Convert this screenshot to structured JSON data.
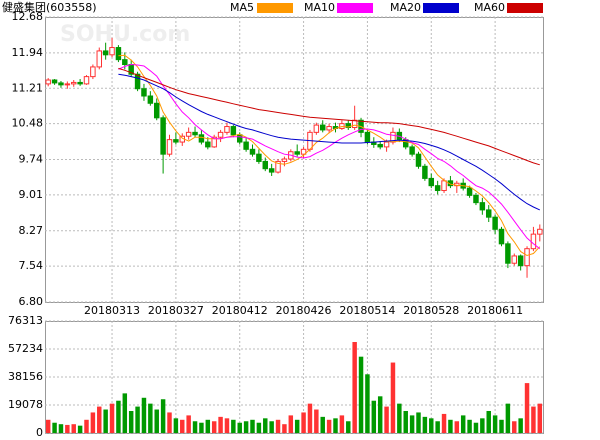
{
  "chart_data": {
    "type": "candlestick",
    "title": "健盛集团(603558)",
    "watermark": "SOHU.com",
    "categories": [
      null,
      null,
      null,
      null,
      null,
      null,
      null,
      null,
      null,
      null,
      "20180313",
      null,
      null,
      null,
      null,
      null,
      null,
      null,
      null,
      null,
      "20180327",
      null,
      null,
      null,
      null,
      null,
      null,
      null,
      null,
      null,
      "20180412",
      null,
      null,
      null,
      null,
      null,
      null,
      null,
      null,
      null,
      "20180426",
      null,
      null,
      null,
      null,
      null,
      null,
      null,
      null,
      null,
      "20180514",
      null,
      null,
      null,
      null,
      null,
      null,
      null,
      null,
      null,
      "20180528",
      null,
      null,
      null,
      null,
      null,
      null,
      null,
      null,
      null,
      "20180611",
      null,
      null,
      null,
      null,
      null,
      null,
      null
    ],
    "open": [
      11.3,
      11.38,
      11.32,
      11.28,
      11.3,
      11.33,
      11.3,
      11.45,
      11.65,
      11.98,
      11.9,
      12.05,
      11.8,
      11.7,
      11.5,
      11.2,
      11.05,
      10.9,
      10.6,
      9.85,
      10.15,
      10.1,
      10.22,
      10.3,
      10.25,
      10.1,
      10.0,
      10.2,
      10.3,
      10.42,
      10.25,
      10.1,
      9.95,
      9.85,
      9.7,
      9.55,
      9.48,
      9.7,
      9.75,
      9.9,
      9.85,
      9.95,
      10.3,
      10.45,
      10.35,
      10.42,
      10.38,
      10.48,
      10.4,
      10.55,
      10.3,
      10.1,
      10.05,
      10.0,
      10.1,
      10.3,
      10.15,
      10.0,
      9.85,
      9.6,
      9.35,
      9.2,
      9.1,
      9.3,
      9.2,
      9.25,
      9.15,
      9.0,
      8.85,
      8.7,
      8.55,
      8.3,
      8.0,
      7.6,
      7.75,
      7.55,
      7.9,
      8.2
    ],
    "high": [
      11.42,
      11.4,
      11.36,
      11.35,
      11.38,
      11.4,
      11.48,
      11.7,
      12.05,
      12.15,
      12.25,
      12.1,
      11.95,
      11.8,
      11.55,
      11.3,
      11.15,
      11.0,
      10.65,
      10.25,
      10.3,
      10.28,
      10.4,
      10.42,
      10.35,
      10.2,
      10.25,
      10.35,
      10.5,
      10.45,
      10.3,
      10.18,
      10.05,
      9.95,
      9.78,
      9.65,
      9.75,
      9.8,
      9.95,
      10.05,
      10.0,
      10.35,
      10.5,
      10.55,
      10.48,
      10.5,
      10.55,
      10.55,
      10.85,
      10.6,
      10.35,
      10.2,
      10.12,
      10.15,
      10.4,
      10.38,
      10.2,
      10.05,
      9.9,
      9.65,
      9.45,
      9.3,
      9.35,
      9.4,
      9.3,
      9.35,
      9.2,
      9.05,
      8.95,
      8.8,
      8.6,
      8.35,
      8.05,
      7.8,
      7.78,
      7.95,
      8.35,
      8.4
    ],
    "low": [
      11.25,
      11.28,
      11.22,
      11.2,
      11.24,
      11.26,
      11.28,
      11.4,
      11.6,
      11.8,
      11.85,
      11.75,
      11.6,
      11.45,
      11.15,
      10.95,
      10.85,
      10.55,
      9.45,
      9.8,
      10.05,
      10.02,
      10.15,
      10.2,
      10.05,
      9.95,
      9.98,
      10.1,
      10.25,
      10.2,
      10.05,
      9.9,
      9.8,
      9.65,
      9.5,
      9.4,
      9.45,
      9.6,
      9.7,
      9.8,
      9.78,
      9.9,
      10.25,
      10.3,
      10.28,
      10.3,
      10.35,
      10.35,
      10.35,
      10.2,
      10.05,
      9.98,
      9.95,
      9.9,
      10.05,
      10.1,
      9.95,
      9.8,
      9.55,
      9.3,
      9.15,
      9.02,
      9.05,
      9.15,
      9.05,
      9.1,
      8.95,
      8.8,
      8.6,
      8.45,
      8.2,
      7.95,
      7.5,
      7.55,
      7.45,
      7.3,
      7.85,
      8.05
    ],
    "close": [
      11.38,
      11.32,
      11.28,
      11.3,
      11.33,
      11.3,
      11.45,
      11.65,
      11.98,
      11.9,
      12.05,
      11.8,
      11.7,
      11.5,
      11.2,
      11.05,
      10.9,
      10.6,
      9.85,
      10.15,
      10.1,
      10.22,
      10.3,
      10.25,
      10.1,
      10.0,
      10.2,
      10.3,
      10.42,
      10.25,
      10.1,
      9.95,
      9.85,
      9.7,
      9.55,
      9.48,
      9.7,
      9.75,
      9.9,
      9.85,
      9.95,
      10.3,
      10.45,
      10.35,
      10.42,
      10.38,
      10.48,
      10.4,
      10.55,
      10.3,
      10.1,
      10.05,
      10.0,
      10.1,
      10.3,
      10.15,
      10.0,
      9.85,
      9.6,
      9.35,
      9.2,
      9.1,
      9.3,
      9.2,
      9.25,
      9.15,
      9.0,
      8.85,
      8.7,
      8.55,
      8.3,
      8.0,
      7.6,
      7.75,
      7.55,
      7.9,
      8.2,
      8.3
    ],
    "volume": [
      9000,
      7000,
      6000,
      5500,
      6000,
      5000,
      9000,
      14000,
      18000,
      16000,
      20000,
      22000,
      27000,
      15000,
      18000,
      24000,
      20000,
      16000,
      23000,
      14000,
      10000,
      9000,
      12000,
      8000,
      7000,
      9000,
      8000,
      11000,
      10000,
      9000,
      7000,
      8000,
      9000,
      7000,
      10000,
      8000,
      9000,
      6000,
      12000,
      9000,
      14000,
      20000,
      16000,
      11000,
      9000,
      10000,
      12000,
      8000,
      62000,
      52000,
      40000,
      22000,
      25000,
      18000,
      48000,
      20000,
      15000,
      12000,
      14000,
      11000,
      10000,
      8000,
      13000,
      9000,
      8000,
      12000,
      9000,
      7000,
      10000,
      15000,
      12000,
      9000,
      20000,
      8000,
      10000,
      34000,
      18000,
      20000
    ],
    "up_color": "#ff3232",
    "down_color": "#009900",
    "ylim": [
      6.8,
      12.68
    ],
    "yticks": [
      {
        "value": 6.8,
        "label": "6.80"
      },
      7.54,
      8.27,
      9.01,
      9.74,
      10.48,
      11.21,
      11.94,
      12.68
    ],
    "volume_lim": [
      0,
      76313
    ],
    "volume_ticks": [
      0,
      19078,
      38156,
      57234,
      76313
    ],
    "grid": true,
    "series": [
      {
        "name": "MA5",
        "color": "#ff9900",
        "values": [
          null,
          null,
          null,
          null,
          null,
          null,
          null,
          null,
          null,
          null,
          null,
          11.88,
          11.89,
          11.79,
          11.65,
          11.45,
          11.27,
          11.05,
          10.72,
          10.51,
          10.33,
          10.18,
          10.12,
          10.2,
          10.2,
          10.17,
          10.17,
          10.17,
          10.2,
          10.23,
          10.26,
          10.2,
          10.11,
          9.97,
          9.83,
          9.71,
          9.66,
          9.64,
          9.68,
          9.74,
          9.83,
          9.95,
          10.09,
          10.18,
          10.29,
          10.38,
          10.42,
          10.41,
          10.45,
          10.42,
          10.35,
          10.28,
          10.2,
          10.11,
          10.11,
          10.12,
          10.11,
          10.08,
          9.98,
          9.79,
          9.6,
          9.42,
          9.31,
          9.23,
          9.21,
          9.2,
          9.18,
          9.09,
          8.99,
          8.85,
          8.68,
          8.48,
          8.21,
          8.04,
          7.84,
          7.76,
          7.8,
          7.94
        ]
      },
      {
        "name": "MA10",
        "color": "#ff00ff",
        "values": [
          null,
          null,
          null,
          null,
          null,
          null,
          null,
          null,
          null,
          null,
          null,
          11.6,
          11.66,
          11.7,
          11.69,
          11.67,
          11.57,
          11.46,
          11.26,
          11.08,
          10.89,
          10.72,
          10.6,
          10.46,
          10.35,
          10.25,
          10.17,
          10.17,
          10.2,
          10.21,
          10.21,
          10.19,
          10.16,
          10.09,
          10.02,
          9.96,
          9.9,
          9.85,
          9.83,
          9.79,
          9.77,
          9.8,
          9.87,
          9.93,
          10.01,
          10.1,
          10.18,
          10.25,
          10.31,
          10.36,
          10.37,
          10.35,
          10.31,
          10.26,
          10.24,
          10.22,
          10.16,
          10.09,
          10.05,
          9.95,
          9.86,
          9.76,
          9.7,
          9.61,
          9.5,
          9.41,
          9.3,
          9.2,
          9.15,
          9.07,
          8.95,
          8.82,
          8.65,
          8.47,
          8.29,
          8.12,
          8.0,
          7.9
        ]
      },
      {
        "name": "MA20",
        "color": "#0000cc",
        "values": [
          null,
          null,
          null,
          null,
          null,
          null,
          null,
          null,
          null,
          null,
          null,
          11.5,
          11.48,
          11.45,
          11.42,
          11.38,
          11.32,
          11.26,
          11.2,
          11.12,
          11.03,
          10.95,
          10.87,
          10.8,
          10.73,
          10.67,
          10.62,
          10.57,
          10.52,
          10.47,
          10.42,
          10.38,
          10.35,
          10.31,
          10.27,
          10.23,
          10.2,
          10.18,
          10.16,
          10.15,
          10.14,
          10.13,
          10.12,
          10.11,
          10.1,
          10.09,
          10.08,
          10.08,
          10.08,
          10.08,
          10.09,
          10.1,
          10.11,
          10.12,
          10.13,
          10.14,
          10.13,
          10.12,
          10.1,
          10.07,
          10.03,
          9.99,
          9.94,
          9.88,
          9.81,
          9.74,
          9.67,
          9.6,
          9.52,
          9.43,
          9.34,
          9.24,
          9.13,
          9.02,
          8.92,
          8.83,
          8.76,
          8.7
        ]
      },
      {
        "name": "MA60",
        "color": "#cc0000",
        "values": [
          null,
          null,
          null,
          null,
          null,
          null,
          null,
          null,
          null,
          null,
          null,
          11.62,
          11.58,
          11.53,
          11.48,
          11.43,
          11.38,
          11.33,
          11.28,
          11.23,
          11.18,
          11.14,
          11.1,
          11.07,
          11.04,
          11.01,
          10.98,
          10.95,
          10.92,
          10.89,
          10.86,
          10.83,
          10.8,
          10.77,
          10.75,
          10.73,
          10.71,
          10.69,
          10.67,
          10.65,
          10.63,
          10.61,
          10.6,
          10.59,
          10.58,
          10.57,
          10.56,
          10.55,
          10.54,
          10.53,
          10.52,
          10.51,
          10.5,
          10.5,
          10.49,
          10.48,
          10.46,
          10.44,
          10.42,
          10.39,
          10.36,
          10.33,
          10.3,
          10.26,
          10.22,
          10.18,
          10.14,
          10.1,
          10.06,
          10.02,
          9.97,
          9.92,
          9.87,
          9.82,
          9.77,
          9.72,
          9.67,
          9.63
        ]
      }
    ]
  }
}
